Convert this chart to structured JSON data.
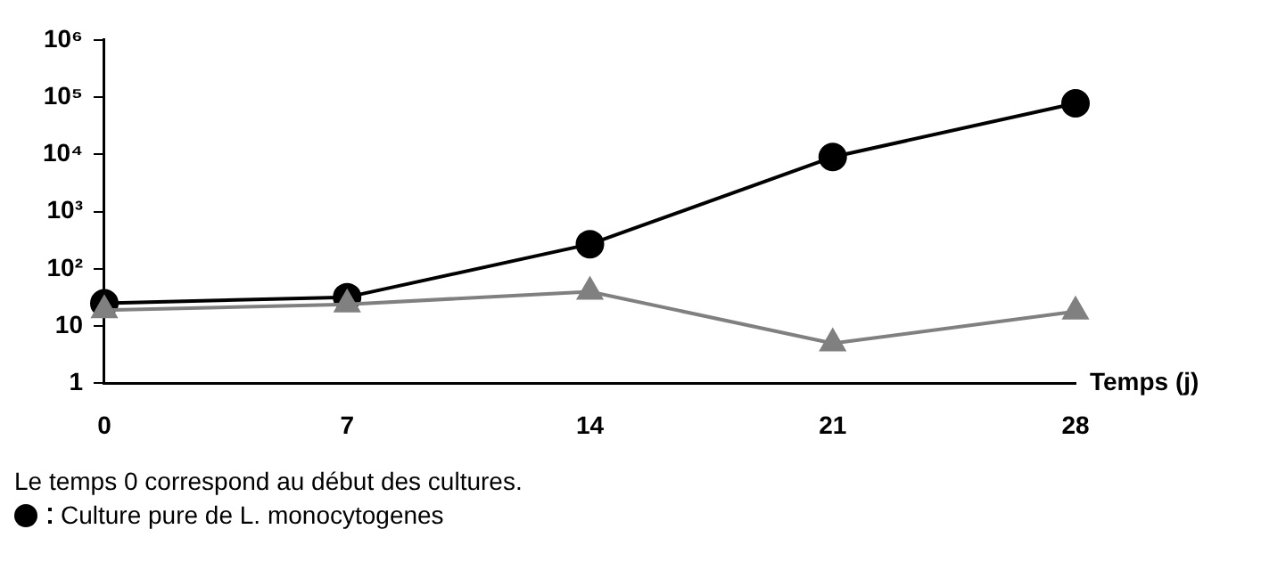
{
  "chart_data": {
    "type": "line",
    "xlabel": "Temps (j)",
    "x": [
      0,
      7,
      14,
      21,
      28
    ],
    "xlim": [
      0,
      28
    ],
    "xticks": [
      0,
      7,
      14,
      21,
      28
    ],
    "log": "y",
    "ylim": [
      1,
      1000000
    ],
    "yticks": [
      1,
      10,
      {
        "value": 100,
        "label": "10²"
      },
      {
        "value": 1000,
        "label": "10³"
      },
      {
        "value": 10000,
        "label": "10⁴"
      },
      {
        "value": 100000,
        "label": "10⁵"
      },
      {
        "value": 1000000,
        "label": "10⁶"
      }
    ],
    "grid": false,
    "legend": "bottom",
    "line_style": "solid",
    "series": [
      {
        "name": "Culture pure de L. monocytogenes",
        "color": "#000000",
        "marker": "circle",
        "values": [
          25,
          32,
          270,
          9000,
          78000
        ]
      },
      {
        "color": "#808080",
        "marker": "triangle",
        "values": [
          19,
          24,
          40,
          5,
          18
        ]
      }
    ],
    "annotations": [
      "Le temps 0 correspond au début des cultures."
    ]
  }
}
